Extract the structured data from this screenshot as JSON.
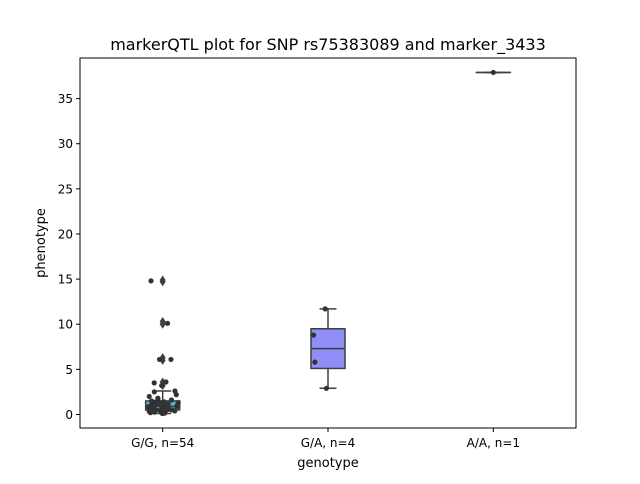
{
  "chart_data": {
    "type": "box",
    "title": "markerQTL plot for SNP rs75383089 and marker_3433",
    "xlabel": "genotype",
    "ylabel": "phenotype",
    "ylim": [
      -1.5,
      39.5
    ],
    "yticks": [
      0,
      5,
      10,
      15,
      20,
      25,
      30,
      35
    ],
    "grid": false,
    "categories": [
      "G/G, n=54",
      "G/A, n=4",
      "A/A, n=1"
    ],
    "boxes": [
      {
        "category": "G/G, n=54",
        "q1": 0.5,
        "median": 0.9,
        "q3": 1.5,
        "whisker_low": 0.1,
        "whisker_high": 2.6,
        "color": "#4db3d9",
        "fliers": [
          3.2,
          3.6,
          6.0,
          6.3,
          10.0,
          10.3,
          14.7,
          14.9
        ]
      },
      {
        "category": "G/A, n=4",
        "q1": 5.1,
        "median": 7.3,
        "q3": 9.5,
        "whisker_low": 2.9,
        "whisker_high": 11.7,
        "color": "#8f8ff7",
        "fliers": []
      },
      {
        "category": "A/A, n=1",
        "q1": 37.9,
        "median": 37.9,
        "q3": 37.9,
        "whisker_low": 37.9,
        "whisker_high": 37.9,
        "color": "#d98cd9",
        "fliers": []
      }
    ],
    "points": [
      {
        "category": "G/G, n=54",
        "values": [
          0.1,
          0.15,
          0.2,
          0.25,
          0.3,
          0.3,
          0.35,
          0.4,
          0.4,
          0.45,
          0.5,
          0.5,
          0.55,
          0.6,
          0.6,
          0.65,
          0.7,
          0.7,
          0.75,
          0.8,
          0.8,
          0.85,
          0.9,
          0.9,
          0.95,
          1.0,
          1.0,
          1.05,
          1.1,
          1.1,
          1.15,
          1.2,
          1.2,
          1.3,
          1.3,
          1.35,
          1.4,
          1.4,
          1.5,
          1.6,
          1.7,
          1.8,
          2.0,
          2.2,
          2.5,
          2.6,
          3.2,
          3.5,
          3.6,
          6.1,
          6.1,
          10.1,
          14.8,
          0.3
        ]
      },
      {
        "category": "G/A, n=4",
        "values": [
          2.9,
          5.8,
          8.8,
          11.7
        ]
      },
      {
        "category": "A/A, n=1",
        "values": [
          37.9
        ]
      }
    ]
  }
}
